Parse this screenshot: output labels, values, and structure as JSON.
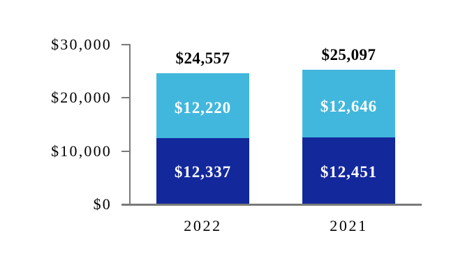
{
  "chart_data": {
    "type": "bar",
    "stacked": true,
    "title": "",
    "xlabel": "",
    "ylabel": "",
    "legend": "none",
    "grid": false,
    "categories": [
      "2022",
      "2021"
    ],
    "series": [
      {
        "name": "lower-segment",
        "color": "#13289b",
        "values": [
          12337,
          12451
        ],
        "labels": [
          "$12,337",
          "$12,451"
        ]
      },
      {
        "name": "upper-segment",
        "color": "#42b7dd",
        "values": [
          12220,
          12646
        ],
        "labels": [
          "$12,220",
          "$12,646"
        ]
      }
    ],
    "totals": {
      "values": [
        24557,
        25097
      ],
      "labels": [
        "$24,557",
        "$25,097"
      ]
    },
    "y_axis": {
      "range": [
        0,
        30000
      ],
      "ticks": [
        {
          "value": 0,
          "label": "$0"
        },
        {
          "value": 10000,
          "label": "$10,000"
        },
        {
          "value": 20000,
          "label": "$20,000"
        },
        {
          "value": 30000,
          "label": "$30,000"
        }
      ]
    },
    "colors": {
      "axis": "#7a7a7a",
      "total_label": "#000000",
      "segment_label": "#ffffff",
      "background": "#ffffff"
    }
  }
}
